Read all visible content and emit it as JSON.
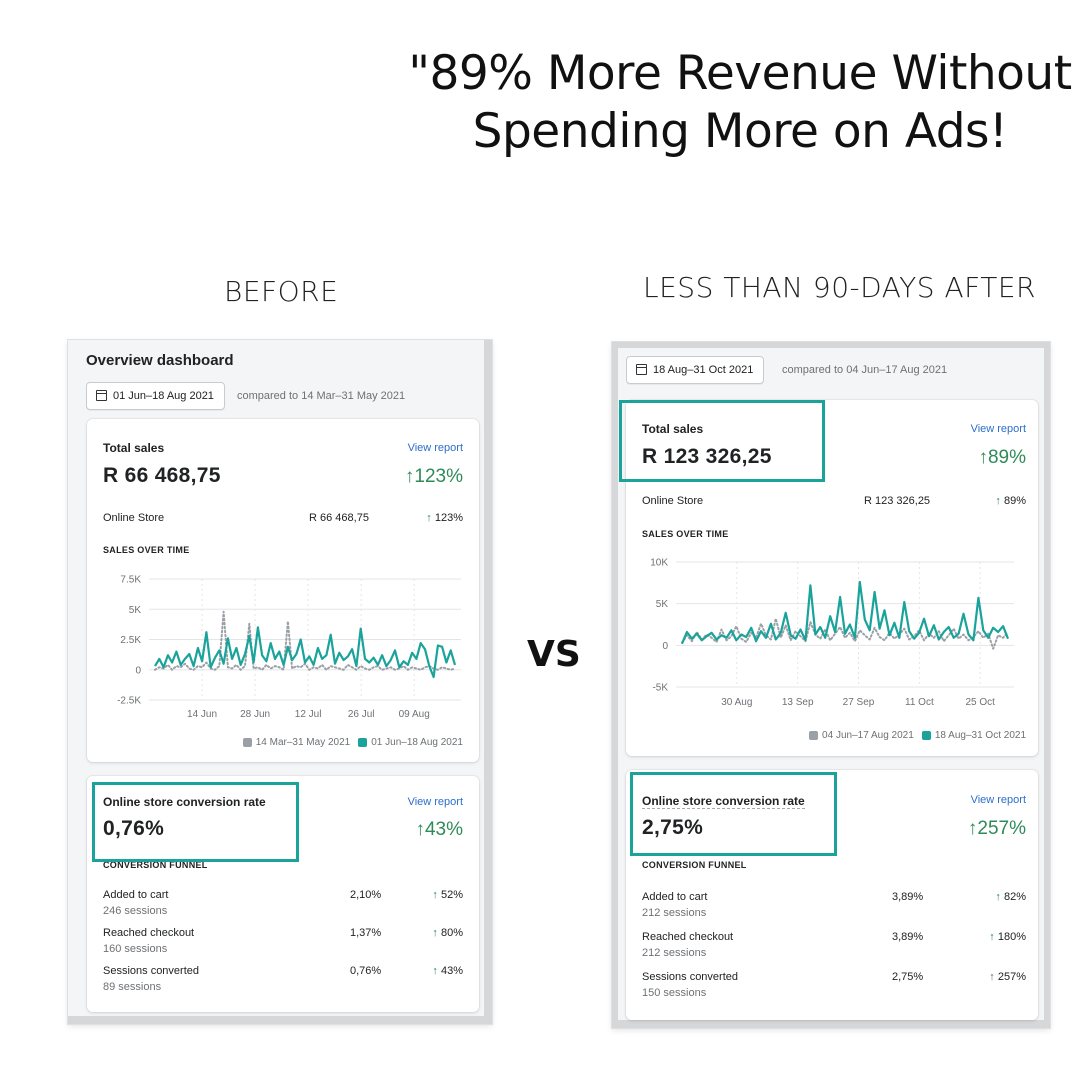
{
  "headline": "\"89% More Revenue Without Spending More on Ads!",
  "labels": {
    "before": "BEFORE",
    "after": "LESS THAN 90-DAYS AFTER",
    "vs": "VS"
  },
  "colors": {
    "teal": "#1aa39a",
    "grey_series": "#9aa0a6",
    "green": "#2e8b57",
    "highlight": "#1aa39a"
  },
  "before": {
    "dashboard_title": "Overview dashboard",
    "date_range": "01 Jun–18 Aug 2021",
    "compared": "compared to 14 Mar–31 May 2021",
    "total_sales": {
      "title": "Total sales",
      "link": "View report",
      "value": "R 66 468,75",
      "change": "123%",
      "online_store_label": "Online Store",
      "online_store_value": "R 66 468,75",
      "online_store_change": "123%"
    },
    "chart_heading": "SALES OVER TIME",
    "conversion": {
      "title": "Online store conversion rate",
      "link": "View report",
      "value": "0,76%",
      "change": "43%",
      "funnel_heading": "CONVERSION FUNNEL",
      "rows": [
        {
          "label": "Added to cart",
          "sessions": "246 sessions",
          "value": "2,10%",
          "change": "52%"
        },
        {
          "label": "Reached checkout",
          "sessions": "160 sessions",
          "value": "1,37%",
          "change": "80%"
        },
        {
          "label": "Sessions converted",
          "sessions": "89 sessions",
          "value": "0,76%",
          "change": "43%"
        }
      ]
    }
  },
  "after": {
    "date_range": "18 Aug–31 Oct 2021",
    "compared": "compared to 04 Jun–17 Aug 2021",
    "total_sales": {
      "title": "Total sales",
      "link": "View report",
      "value": "R 123 326,25",
      "change": "89%",
      "online_store_label": "Online Store",
      "online_store_value": "R 123 326,25",
      "online_store_change": "89%"
    },
    "chart_heading": "SALES OVER TIME",
    "conversion": {
      "title": "Online store conversion rate",
      "link": "View report",
      "value": "2,75%",
      "change": "257%",
      "funnel_heading": "CONVERSION FUNNEL",
      "rows": [
        {
          "label": "Added to cart",
          "sessions": "212 sessions",
          "value": "3,89%",
          "change": "82%"
        },
        {
          "label": "Reached checkout",
          "sessions": "212 sessions",
          "value": "3,89%",
          "change": "180%"
        },
        {
          "label": "Sessions converted",
          "sessions": "150 sessions",
          "value": "2,75%",
          "change": "257%"
        }
      ]
    }
  },
  "chart_data": [
    {
      "type": "line",
      "title": "SALES OVER TIME",
      "y_ticks": [
        "7.5K",
        "5K",
        "2.5K",
        "0",
        "-2.5K"
      ],
      "ylim": [
        -2500,
        7500
      ],
      "x_ticks": [
        "14 Jun",
        "28 Jun",
        "12 Jul",
        "26 Jul",
        "09 Aug"
      ],
      "series": [
        {
          "name": "14 Mar–31 May 2021",
          "color": "#9aa0a6",
          "style": "dotted",
          "values": [
            0,
            200,
            100,
            400,
            0,
            300,
            200,
            500,
            100,
            0,
            300,
            200,
            600,
            100,
            0,
            300,
            4800,
            200,
            100,
            400,
            0,
            300,
            3800,
            100,
            200,
            0,
            400,
            100,
            300,
            200,
            0,
            4000,
            100,
            300,
            200,
            500,
            0,
            200,
            100,
            400,
            0,
            300,
            200,
            100,
            0,
            400,
            200,
            0,
            300,
            100,
            0,
            200,
            300,
            0,
            100,
            200,
            0,
            100,
            300,
            0,
            200,
            100,
            0,
            200,
            300,
            100,
            0,
            200,
            100,
            0,
            100
          ]
        },
        {
          "name": "01 Jun–18 Aug 2021",
          "color": "#1aa39a",
          "style": "solid",
          "values": [
            300,
            900,
            200,
            1200,
            600,
            1500,
            400,
            900,
            1300,
            300,
            1800,
            700,
            3100,
            200,
            1000,
            1600,
            500,
            2600,
            900,
            1800,
            400,
            1300,
            2800,
            600,
            3500,
            1200,
            700,
            2200,
            900,
            1500,
            400,
            1900,
            800,
            1300,
            2500,
            600,
            1100,
            400,
            1800,
            900,
            1200,
            2900,
            500,
            1400,
            800,
            1100,
            1700,
            300,
            3400,
            900,
            600,
            1000,
            400,
            1200,
            300,
            800,
            1600,
            200,
            700,
            400,
            1400,
            900,
            2200,
            1700,
            300,
            -600,
            2000,
            1900,
            600,
            1600,
            400
          ]
        }
      ]
    },
    {
      "type": "line",
      "title": "SALES OVER TIME",
      "y_ticks": [
        "10K",
        "5K",
        "0",
        "-5K"
      ],
      "ylim": [
        -5000,
        10000
      ],
      "x_ticks": [
        "30 Aug",
        "13 Sep",
        "27 Sep",
        "11 Oct",
        "25 Oct"
      ],
      "series": [
        {
          "name": "04 Jun–17 Aug 2021",
          "color": "#9aa0a6",
          "style": "dotted",
          "values": [
            300,
            1200,
            500,
            1600,
            700,
            1300,
            900,
            400,
            1900,
            600,
            1100,
            2300,
            800,
            400,
            1500,
            900,
            2600,
            1200,
            700,
            3200,
            900,
            2400,
            600,
            1700,
            1100,
            500,
            2800,
            1300,
            800,
            1900,
            600,
            1400,
            2200,
            900,
            1500,
            500,
            1800,
            1200,
            700,
            2100,
            1000,
            600,
            1500,
            800,
            1300,
            2000,
            700,
            1100,
            1800,
            600,
            1400,
            900,
            1700,
            500,
            1200,
            2000,
            800,
            1300,
            600,
            1000,
            1700,
            900,
            1400,
            -400,
            1200,
            900,
            1600
          ]
        },
        {
          "name": "18 Aug–31 Oct 2021",
          "color": "#1aa39a",
          "style": "solid",
          "values": [
            200,
            1600,
            800,
            1400,
            600,
            1100,
            1500,
            700,
            1200,
            900,
            1800,
            600,
            1300,
            1000,
            2100,
            500,
            1700,
            900,
            2600,
            700,
            1500,
            3900,
            1200,
            800,
            1900,
            600,
            7200,
            1300,
            2200,
            900,
            3500,
            1600,
            5800,
            1400,
            2500,
            900,
            7600,
            3100,
            1800,
            6400,
            2000,
            4200,
            1200,
            2700,
            900,
            5200,
            1700,
            800,
            1500,
            3200,
            1100,
            2400,
            700,
            1600,
            2200,
            900,
            1400,
            3800,
            1300,
            600,
            5700,
            1800,
            900,
            2100,
            1600,
            2300,
            800
          ]
        }
      ]
    }
  ]
}
